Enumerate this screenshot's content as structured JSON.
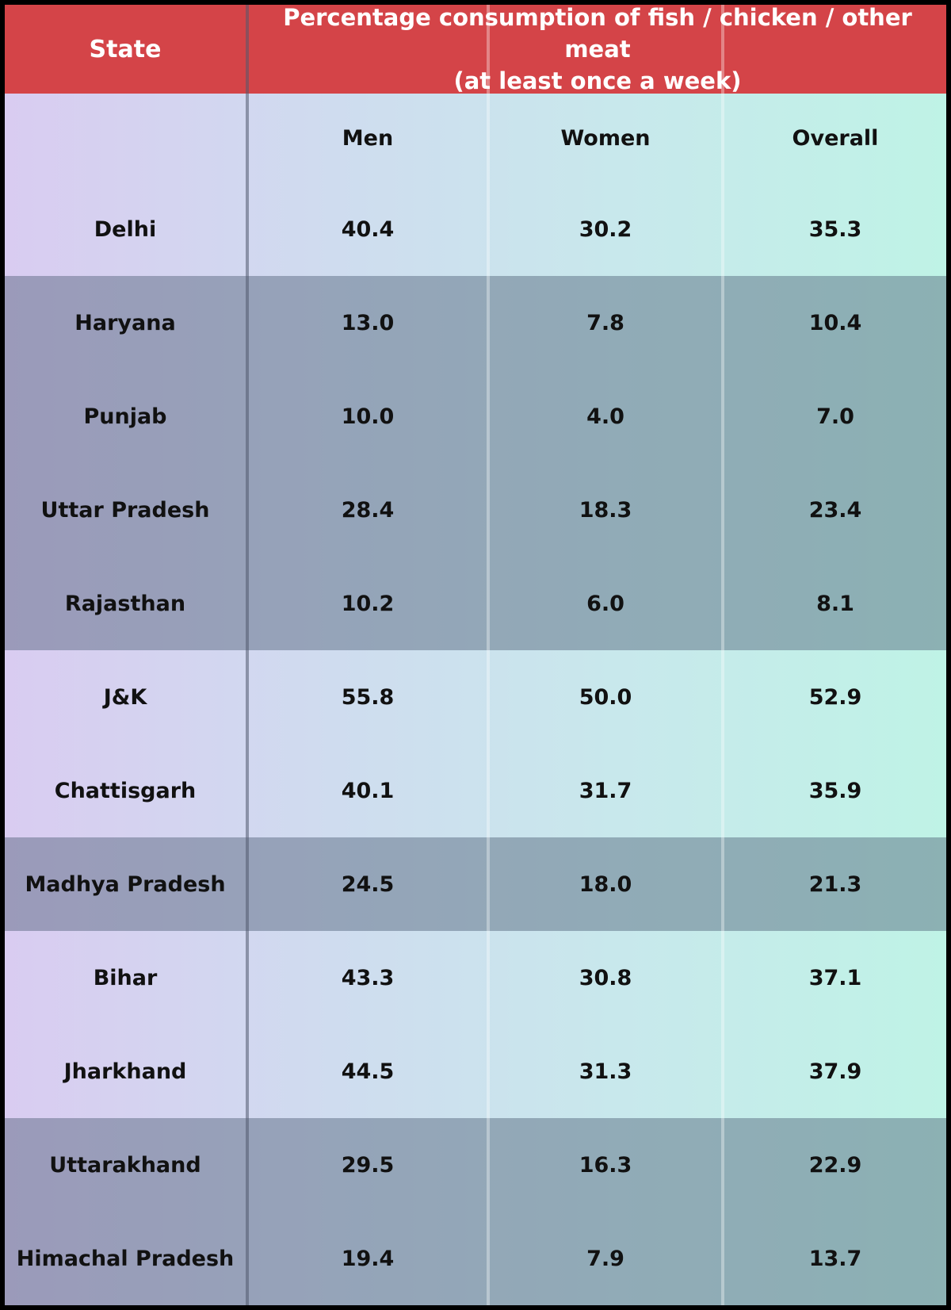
{
  "chart_data": {
    "type": "table",
    "header": {
      "state_label": "State",
      "title_line1": "Percentage consumption of fish / chicken / other meat",
      "title_line2": "(at least once a week)"
    },
    "columns": [
      "Men",
      "Women",
      "Overall"
    ],
    "rows": [
      {
        "state": "Delhi",
        "men": "40.4",
        "women": "30.2",
        "overall": "35.3"
      },
      {
        "state": "Haryana",
        "men": "13.0",
        "women": "7.8",
        "overall": "10.4"
      },
      {
        "state": "Punjab",
        "men": "10.0",
        "women": "4.0",
        "overall": "7.0"
      },
      {
        "state": "Uttar Pradesh",
        "men": "28.4",
        "women": "18.3",
        "overall": "23.4"
      },
      {
        "state": "Rajasthan",
        "men": "10.2",
        "women": "6.0",
        "overall": "8.1"
      },
      {
        "state": "J&K",
        "men": "55.8",
        "women": "50.0",
        "overall": "52.9"
      },
      {
        "state": "Chattisgarh",
        "men": "40.1",
        "women": "31.7",
        "overall": "35.9"
      },
      {
        "state": "Madhya Pradesh",
        "men": "24.5",
        "women": "18.0",
        "overall": "21.3"
      },
      {
        "state": "Bihar",
        "men": "43.3",
        "women": "30.8",
        "overall": "37.1"
      },
      {
        "state": "Jharkhand",
        "men": "44.5",
        "women": "31.3",
        "overall": "37.9"
      },
      {
        "state": "Uttarakhand",
        "men": "29.5",
        "women": "16.3",
        "overall": "22.9"
      },
      {
        "state": "Himachal Pradesh",
        "men": "19.4",
        "women": "7.9",
        "overall": "13.7"
      }
    ],
    "row_bands": [
      "light",
      "dark",
      "dark",
      "dark",
      "dark",
      "light",
      "light",
      "dark",
      "light",
      "light",
      "dark",
      "dark"
    ],
    "colors": {
      "header": "#d44448",
      "header_text": "#ffffff",
      "text": "#111111"
    }
  }
}
